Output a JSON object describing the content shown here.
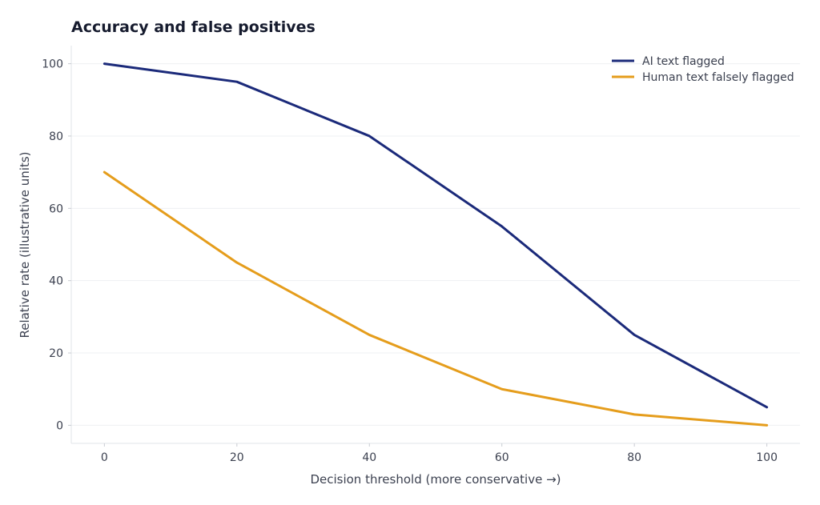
{
  "chart_data": {
    "type": "line",
    "title": "Accuracy and false positives",
    "xlabel": "Decision threshold (more conservative →)",
    "ylabel": "Relative rate (illustrative units)",
    "x": [
      0,
      20,
      40,
      60,
      80,
      100
    ],
    "xticks": [
      "0",
      "20",
      "40",
      "60",
      "80",
      "100"
    ],
    "yticks": [
      "0",
      "20",
      "40",
      "60",
      "80",
      "100"
    ],
    "xlim": [
      -5,
      105
    ],
    "ylim": [
      -5,
      105
    ],
    "grid": "horizontal",
    "legend_position": "top-right",
    "series": [
      {
        "name": "AI text flagged",
        "color": "#1b2a7a",
        "values": [
          100,
          95,
          80,
          55,
          25,
          5
        ]
      },
      {
        "name": "Human text falsely flagged",
        "color": "#e59d1c",
        "values": [
          70,
          45,
          25,
          10,
          3,
          0
        ]
      }
    ]
  }
}
